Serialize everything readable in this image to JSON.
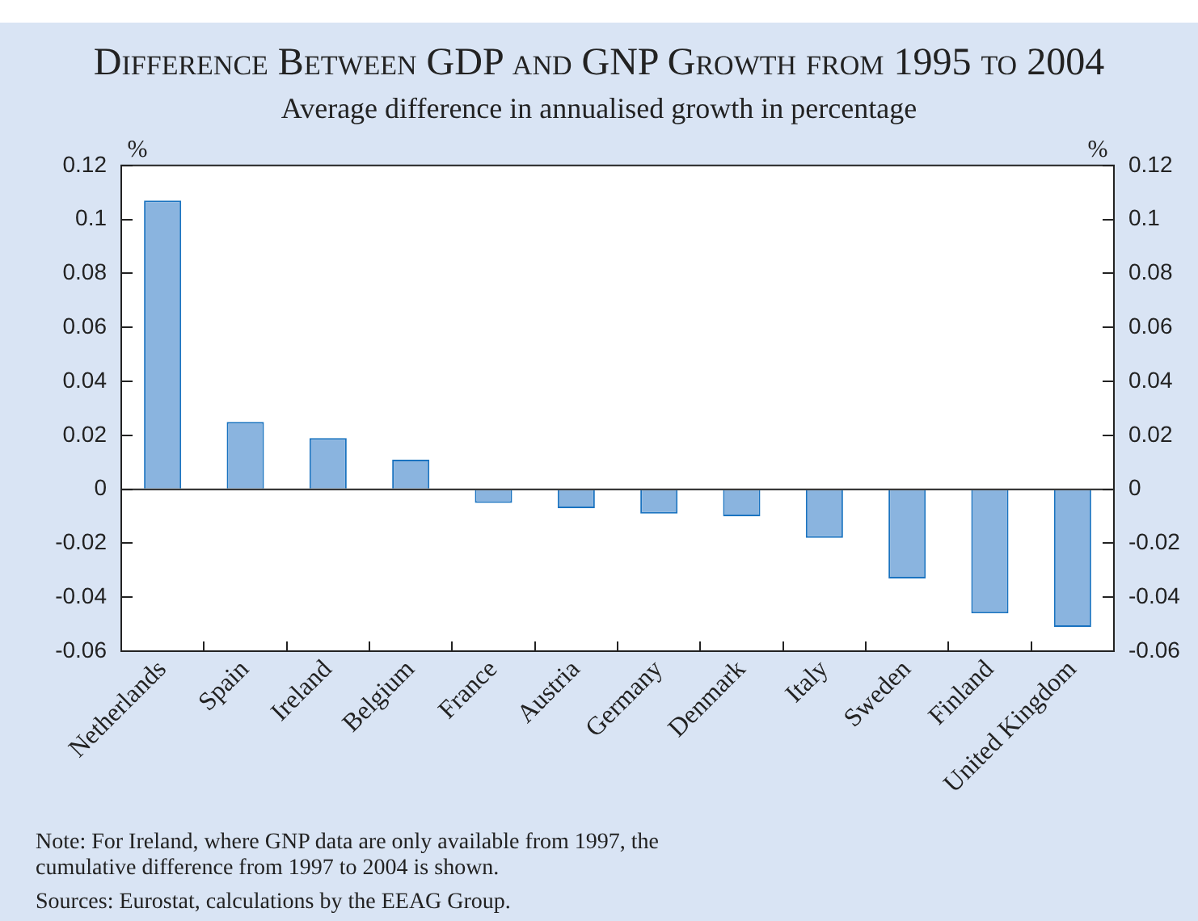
{
  "chart_data": {
    "type": "bar",
    "title": "Difference Between GDP and GNP Growth from 1995 to 2004",
    "subtitle": "Average difference in annualised growth in percentage",
    "ylabel": "%",
    "y2label": "%",
    "categories": [
      "Netherlands",
      "Spain",
      "Ireland",
      "Belgium",
      "France",
      "Austria",
      "Germany",
      "Denmark",
      "Italy",
      "Sweden",
      "Finland",
      "United Kingdom"
    ],
    "values": [
      0.107,
      0.025,
      0.019,
      0.011,
      -0.005,
      -0.007,
      -0.009,
      -0.01,
      -0.018,
      -0.033,
      -0.046,
      -0.051
    ],
    "color": "#8ab4df",
    "ylim": [
      -0.06,
      0.12
    ],
    "yticks": [
      -0.06,
      -0.04,
      -0.02,
      0,
      0.02,
      0.04,
      0.06,
      0.08,
      0.1,
      0.12
    ],
    "y2lim": [
      -0.06,
      0.12
    ],
    "y2ticks": [
      -0.06,
      -0.04,
      -0.02,
      0,
      0.02,
      0.04,
      0.06,
      0.08,
      0.1,
      0.12
    ],
    "legend": false,
    "annotations": [
      "Note: For Ireland, where GNP data are only available from 1997,  the cumulative difference from 1997 to 2004 is shown.",
      "Sources: Eurostat, calculations by the EEAG Group."
    ]
  }
}
